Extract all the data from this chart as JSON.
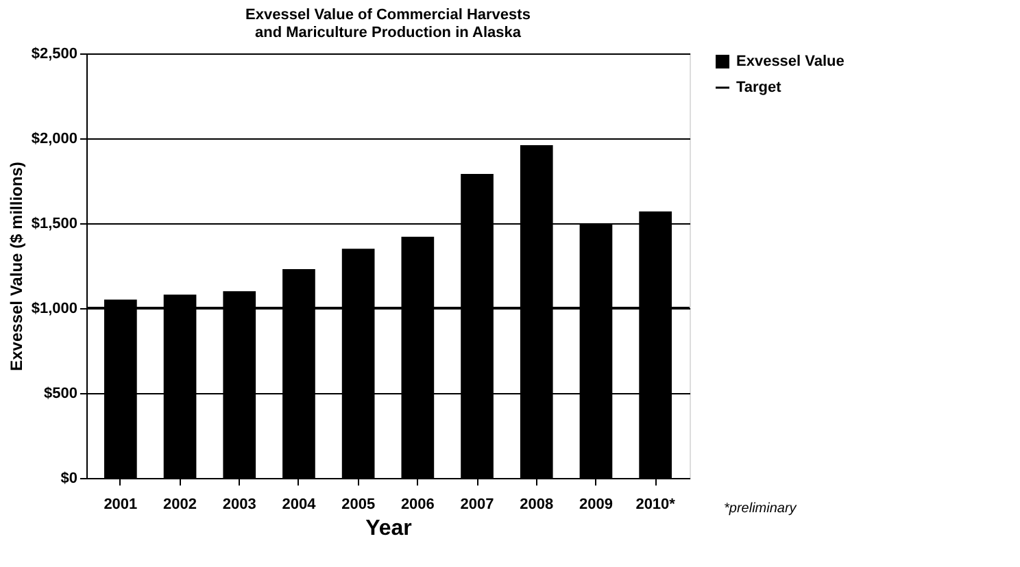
{
  "chart_data": {
    "type": "bar",
    "title": "Exvessel Value of Commercial Harvests and Mariculture Production in Alaska",
    "xlabel": "Year",
    "ylabel": "Exvessel Value ($ millions)",
    "categories": [
      "2001",
      "2002",
      "2003",
      "2004",
      "2005",
      "2006",
      "2007",
      "2008",
      "2009",
      "2010*"
    ],
    "series": [
      {
        "name": "Exvessel Value",
        "color": "#000000",
        "values": [
          1050,
          1080,
          1100,
          1230,
          1350,
          1420,
          1790,
          1960,
          1500,
          1570
        ]
      }
    ],
    "ref_lines": [
      {
        "axis": "y",
        "value": 1000,
        "label": "Target",
        "color": "#000000"
      }
    ],
    "ylim": [
      0,
      2500
    ],
    "yticks": [
      {
        "value": 0,
        "label": "$0"
      },
      {
        "value": 500,
        "label": "$500"
      },
      {
        "value": 1000,
        "label": "$1,000"
      },
      {
        "value": 1500,
        "label": "$1,500"
      },
      {
        "value": 2000,
        "label": "$2,000"
      },
      {
        "value": 2500,
        "label": "$2,500"
      }
    ],
    "grid": "y",
    "legend": "right",
    "annotations": [
      "*preliminary"
    ]
  }
}
